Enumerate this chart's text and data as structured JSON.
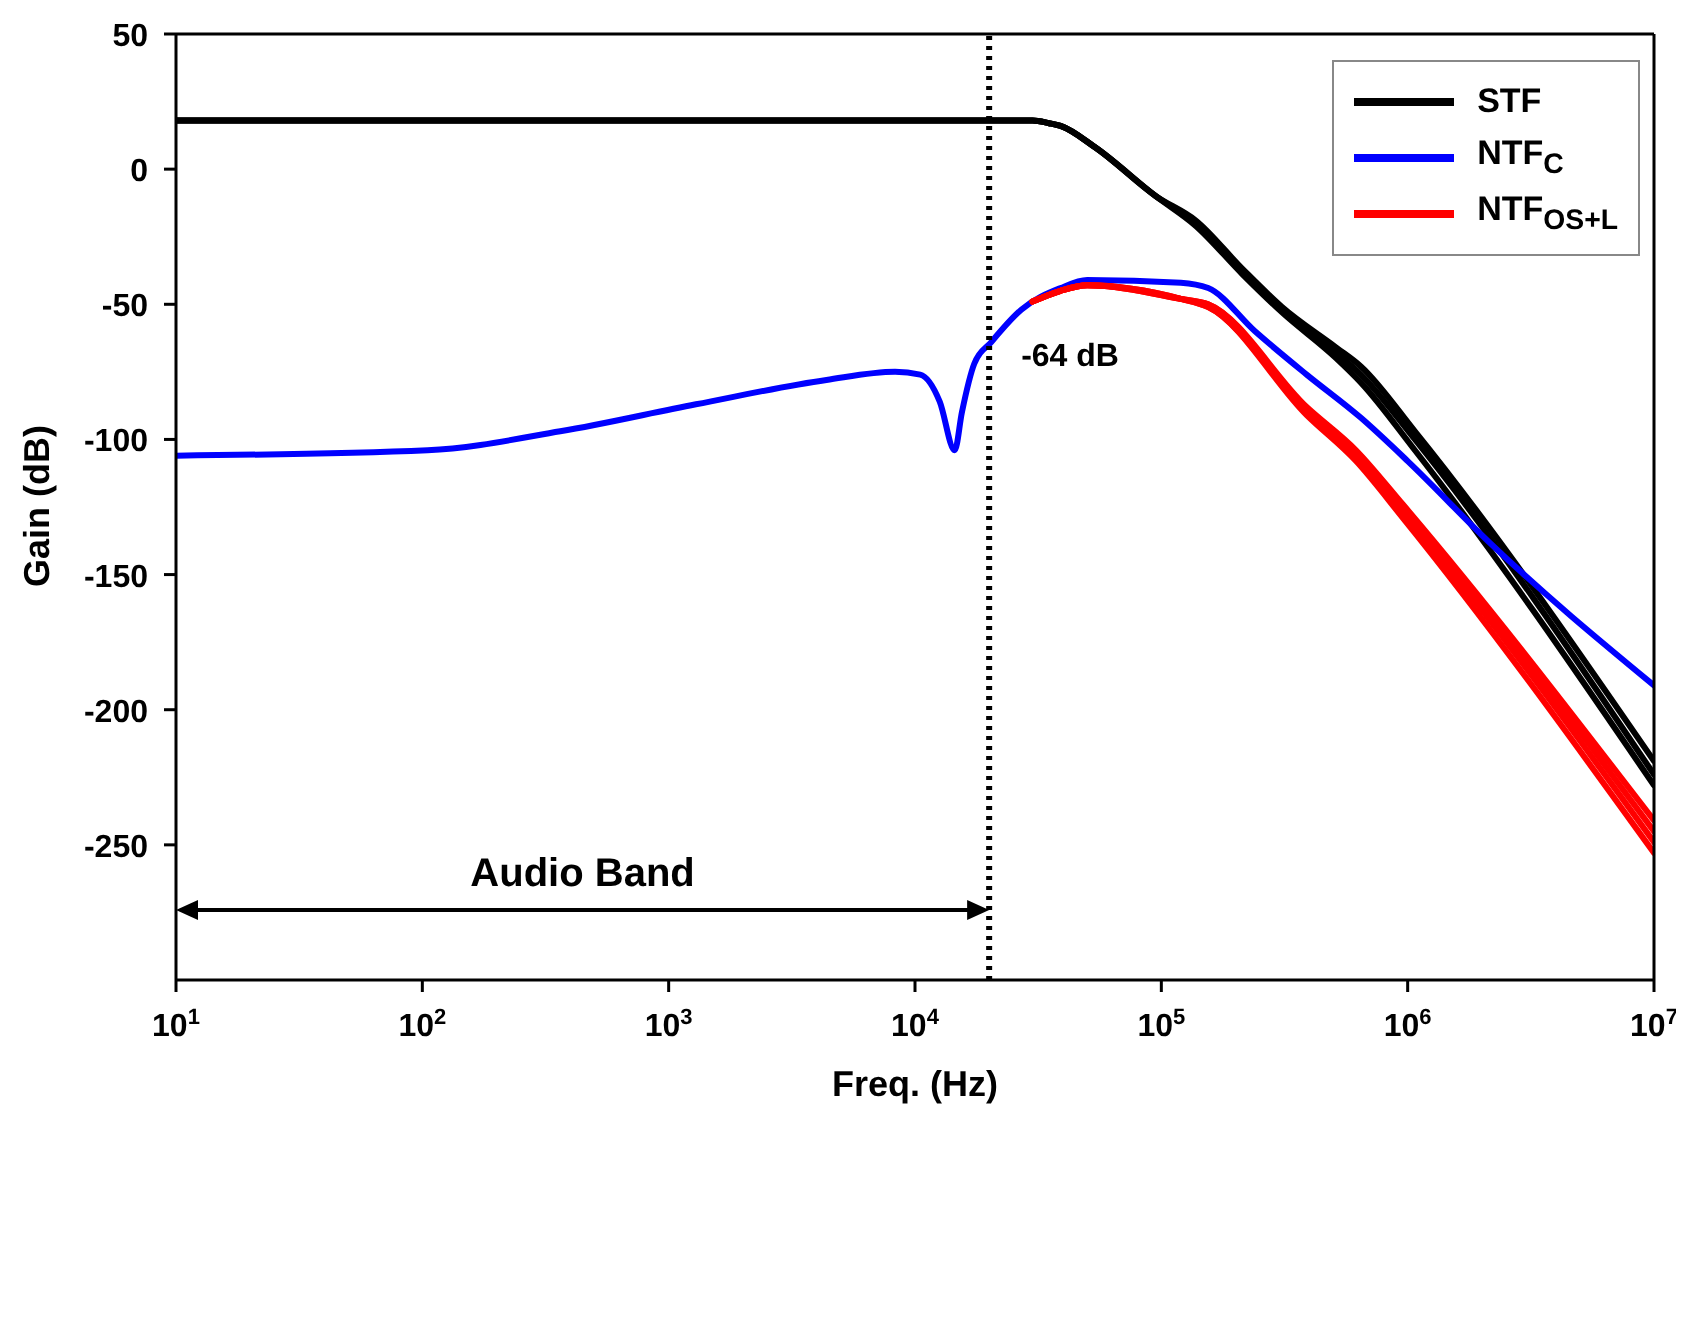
{
  "chart_data": {
    "type": "line",
    "xlabel": "Freq. (Hz)",
    "ylabel": "Gain (dB)",
    "log": "x",
    "xlim": [
      10,
      10000000
    ],
    "ylim": [
      -300,
      50
    ],
    "xticks": [
      {
        "value": 10,
        "label": "10$^{1}$"
      },
      {
        "value": 100,
        "label": "10$^{2}$"
      },
      {
        "value": 1000,
        "label": "10$^{3}$"
      },
      {
        "value": 10000,
        "label": "10$^{4}$"
      },
      {
        "value": 100000,
        "label": "10$^{5}$"
      },
      {
        "value": 1000000,
        "label": "10$^{6}$"
      },
      {
        "value": 10000000,
        "label": "10$^{7}$"
      }
    ],
    "yticks": [
      -250,
      -200,
      -150,
      -100,
      -50,
      0,
      50
    ],
    "grid": false,
    "legend": "top right",
    "series": [
      {
        "name": "STF",
        "color": "#000000",
        "x": [
          10,
          1000,
          20000,
          30000,
          35000,
          39000,
          54000,
          95000,
          138000,
          214000,
          309000,
          513000,
          646000,
          1070000,
          10000000
        ],
        "values": [
          18,
          18,
          18,
          18,
          17,
          16,
          8,
          -10,
          -20,
          -38,
          -52,
          -68,
          -76,
          -100,
          -224
        ]
      },
      {
        "color": "#000000",
        "x": [
          10,
          1000,
          20000,
          30000,
          35000,
          39000,
          54000,
          95000,
          138000,
          214000,
          309000,
          513000,
          646000,
          1070000,
          10000000
        ],
        "values": [
          18,
          18,
          18,
          18,
          17,
          16,
          8,
          -10,
          -21,
          -39,
          -53,
          -70,
          -79,
          -104,
          -228
        ]
      },
      {
        "color": "#000000",
        "x": [
          10,
          1000,
          20000,
          30000,
          35000,
          39000,
          54000,
          95000,
          138000,
          214000,
          309000,
          513000,
          646000,
          1070000,
          10000000
        ],
        "values": [
          18,
          18,
          18,
          18,
          17,
          16,
          8,
          -10,
          -19,
          -37,
          -51,
          -66,
          -73,
          -97,
          -219
        ]
      },
      {
        "name": "NTF$_{C}$",
        "color": "#0000ff",
        "x": [
          10,
          105,
          363,
          1290,
          4370,
          8300,
          10500,
          12600,
          14500,
          15500,
          17400,
          20400,
          27000,
          39000,
          50000,
          120000,
          155000,
          240000,
          389000,
          646000,
          1000000,
          2140000,
          10000000
        ],
        "values": [
          -106,
          -104,
          -97,
          -87,
          -78,
          -75,
          -76,
          -86,
          -104,
          -90,
          -72,
          -64,
          -52,
          -44,
          -41,
          -42,
          -44,
          -60,
          -76,
          -92,
          -108,
          -138,
          -191
        ]
      },
      {
        "name": "NTF$_{OS+L}$",
        "color": "#ff0000",
        "x": [
          30000,
          39000,
          50000,
          120000,
          155000,
          389000,
          617000,
          955000,
          10000000
        ],
        "values": [
          -49,
          -45,
          -43,
          -48,
          -50,
          -88,
          -104,
          -124,
          -241
        ]
      },
      {
        "color": "#ff0000",
        "x": [
          30000,
          39000,
          50000,
          120000,
          155000,
          389000,
          617000,
          955000,
          10000000
        ],
        "values": [
          -49,
          -45,
          -43,
          -48,
          -50,
          -89,
          -105,
          -125,
          -245
        ]
      },
      {
        "color": "#ff0000",
        "x": [
          30000,
          39000,
          50000,
          120000,
          155000,
          389000,
          617000,
          955000,
          10000000
        ],
        "values": [
          -49,
          -45,
          -43,
          -48,
          -51,
          -90,
          -107,
          -127,
          -249
        ]
      },
      {
        "color": "#ff0000",
        "x": [
          30000,
          39000,
          50000,
          120000,
          155000,
          389000,
          617000,
          955000,
          10000000
        ],
        "values": [
          -49,
          -45,
          -43,
          -48,
          -51,
          -91,
          -108,
          -129,
          -253
        ]
      }
    ],
    "ref_lines": [
      {
        "axis": "x",
        "value": 20000,
        "color": "#000000",
        "line_style": "dotted"
      }
    ],
    "annotations": [
      {
        "text": "-64 dB",
        "x": 20000,
        "y": -64
      },
      "Audio Band"
    ]
  }
}
